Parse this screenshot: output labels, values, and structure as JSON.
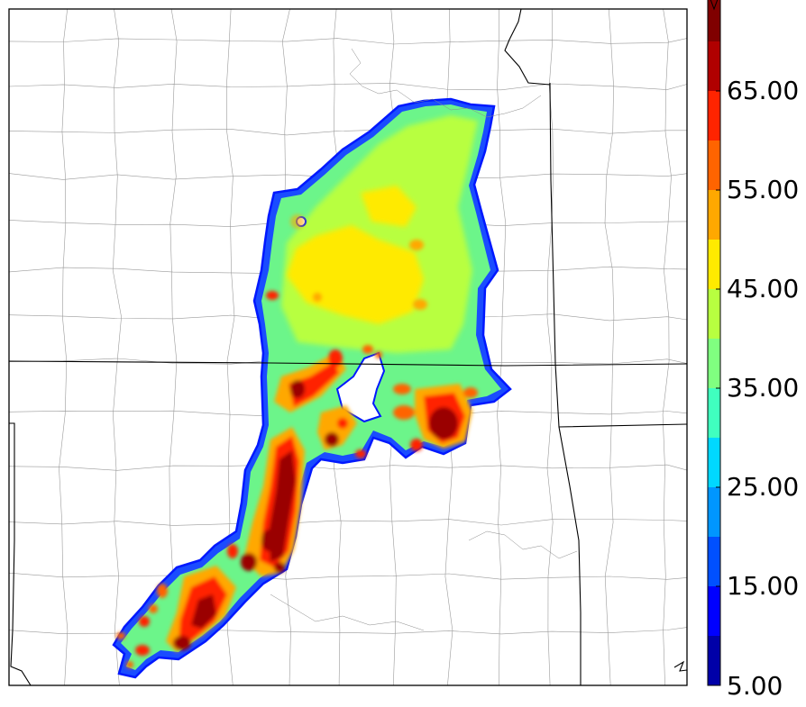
{
  "colorbar": {
    "tick_labels": [
      "5.00",
      "15.00",
      "25.00",
      "35.00",
      "45.00",
      "55.00",
      "65.00"
    ],
    "levels": [
      5,
      10,
      15,
      20,
      25,
      30,
      35,
      40,
      45,
      50,
      55,
      60,
      65,
      70
    ],
    "colors": [
      "#0000a8",
      "#0000ff",
      "#0050ff",
      "#0096ff",
      "#00d8ff",
      "#40ffbf",
      "#80ff80",
      "#b8ff40",
      "#ffea00",
      "#ffa800",
      "#ff6400",
      "#ff2400",
      "#b00000",
      "#800000"
    ],
    "extend": "max"
  }
}
